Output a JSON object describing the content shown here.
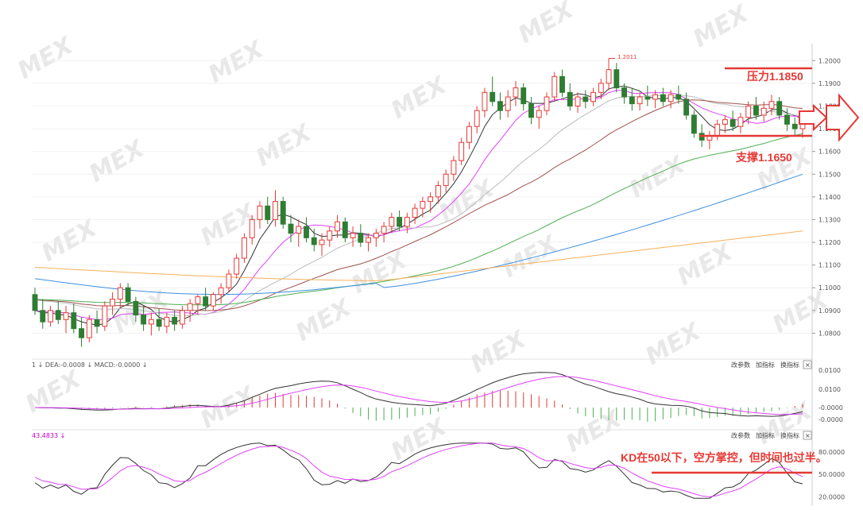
{
  "chart_data": [
    {
      "type": "candlestick",
      "panel": "price",
      "y_ticks": [
        "1.2000",
        "1.1900",
        "1.1800",
        "1.1700",
        "1.1600",
        "1.1500",
        "1.1400",
        "1.1300",
        "1.1200",
        "1.1100",
        "1.1000",
        "1.0900",
        "1.0800"
      ],
      "ylim": [
        1.07,
        1.205
      ],
      "peak_label": "1.2011",
      "resistance": {
        "label": "压力1.1850",
        "value": 1.185
      },
      "support": {
        "label": "支撑1.1650",
        "value": 1.165
      },
      "candles": [
        [
          1.097,
          1.1,
          1.088,
          1.09
        ],
        [
          1.09,
          1.095,
          1.082,
          1.085
        ],
        [
          1.085,
          1.092,
          1.083,
          1.09
        ],
        [
          1.09,
          1.094,
          1.084,
          1.086
        ],
        [
          1.086,
          1.092,
          1.08,
          1.089
        ],
        [
          1.089,
          1.093,
          1.08,
          1.082
        ],
        [
          1.082,
          1.087,
          1.074,
          1.078
        ],
        [
          1.078,
          1.088,
          1.076,
          1.086
        ],
        [
          1.086,
          1.09,
          1.08,
          1.083
        ],
        [
          1.083,
          1.094,
          1.081,
          1.092
        ],
        [
          1.092,
          1.098,
          1.088,
          1.095
        ],
        [
          1.095,
          1.102,
          1.091,
          1.1
        ],
        [
          1.1,
          1.102,
          1.092,
          1.094
        ],
        [
          1.094,
          1.096,
          1.085,
          1.088
        ],
        [
          1.088,
          1.092,
          1.081,
          1.084
        ],
        [
          1.084,
          1.089,
          1.079,
          1.086
        ],
        [
          1.086,
          1.091,
          1.081,
          1.083
        ],
        [
          1.083,
          1.089,
          1.08,
          1.087
        ],
        [
          1.087,
          1.09,
          1.081,
          1.084
        ],
        [
          1.084,
          1.092,
          1.082,
          1.09
        ],
        [
          1.09,
          1.095,
          1.085,
          1.093
        ],
        [
          1.093,
          1.097,
          1.088,
          1.096
        ],
        [
          1.096,
          1.1,
          1.09,
          1.092
        ],
        [
          1.092,
          1.098,
          1.09,
          1.097
        ],
        [
          1.097,
          1.102,
          1.093,
          1.1
        ],
        [
          1.1,
          1.108,
          1.098,
          1.106
        ],
        [
          1.106,
          1.115,
          1.104,
          1.113
        ],
        [
          1.113,
          1.124,
          1.111,
          1.122
        ],
        [
          1.122,
          1.132,
          1.119,
          1.13
        ],
        [
          1.13,
          1.138,
          1.126,
          1.136
        ],
        [
          1.136,
          1.14,
          1.128,
          1.13
        ],
        [
          1.13,
          1.143,
          1.127,
          1.138
        ],
        [
          1.138,
          1.14,
          1.126,
          1.128
        ],
        [
          1.128,
          1.132,
          1.12,
          1.124
        ],
        [
          1.124,
          1.13,
          1.118,
          1.127
        ],
        [
          1.127,
          1.131,
          1.12,
          1.122
        ],
        [
          1.122,
          1.126,
          1.116,
          1.119
        ],
        [
          1.119,
          1.124,
          1.114,
          1.121
        ],
        [
          1.121,
          1.127,
          1.118,
          1.125
        ],
        [
          1.125,
          1.132,
          1.122,
          1.129
        ],
        [
          1.129,
          1.131,
          1.12,
          1.122
        ],
        [
          1.122,
          1.127,
          1.118,
          1.124
        ],
        [
          1.124,
          1.128,
          1.118,
          1.12
        ],
        [
          1.12,
          1.124,
          1.116,
          1.122
        ],
        [
          1.122,
          1.126,
          1.118,
          1.124
        ],
        [
          1.124,
          1.129,
          1.12,
          1.127
        ],
        [
          1.127,
          1.133,
          1.124,
          1.131
        ],
        [
          1.131,
          1.134,
          1.125,
          1.127
        ],
        [
          1.127,
          1.133,
          1.124,
          1.131
        ],
        [
          1.131,
          1.137,
          1.128,
          1.135
        ],
        [
          1.135,
          1.14,
          1.131,
          1.138
        ],
        [
          1.138,
          1.142,
          1.133,
          1.14
        ],
        [
          1.14,
          1.147,
          1.137,
          1.145
        ],
        [
          1.145,
          1.152,
          1.142,
          1.15
        ],
        [
          1.15,
          1.158,
          1.147,
          1.156
        ],
        [
          1.156,
          1.166,
          1.154,
          1.164
        ],
        [
          1.164,
          1.173,
          1.161,
          1.171
        ],
        [
          1.171,
          1.18,
          1.168,
          1.178
        ],
        [
          1.178,
          1.188,
          1.175,
          1.186
        ],
        [
          1.186,
          1.193,
          1.18,
          1.182
        ],
        [
          1.182,
          1.186,
          1.174,
          1.178
        ],
        [
          1.178,
          1.187,
          1.175,
          1.184
        ],
        [
          1.184,
          1.191,
          1.18,
          1.188
        ],
        [
          1.188,
          1.19,
          1.178,
          1.181
        ],
        [
          1.181,
          1.184,
          1.172,
          1.175
        ],
        [
          1.175,
          1.18,
          1.17,
          1.178
        ],
        [
          1.178,
          1.186,
          1.176,
          1.184
        ],
        [
          1.184,
          1.195,
          1.182,
          1.193
        ],
        [
          1.193,
          1.196,
          1.184,
          1.186
        ],
        [
          1.186,
          1.19,
          1.178,
          1.18
        ],
        [
          1.18,
          1.186,
          1.177,
          1.184
        ],
        [
          1.184,
          1.187,
          1.179,
          1.182
        ],
        [
          1.182,
          1.188,
          1.18,
          1.186
        ],
        [
          1.186,
          1.192,
          1.183,
          1.19
        ],
        [
          1.19,
          1.201,
          1.187,
          1.196
        ],
        [
          1.196,
          1.199,
          1.186,
          1.188
        ],
        [
          1.188,
          1.19,
          1.181,
          1.184
        ],
        [
          1.184,
          1.188,
          1.178,
          1.181
        ],
        [
          1.181,
          1.186,
          1.178,
          1.184
        ],
        [
          1.184,
          1.189,
          1.18,
          1.183
        ],
        [
          1.183,
          1.187,
          1.179,
          1.185
        ],
        [
          1.185,
          1.188,
          1.18,
          1.182
        ],
        [
          1.182,
          1.187,
          1.179,
          1.185
        ],
        [
          1.185,
          1.189,
          1.181,
          1.183
        ],
        [
          1.183,
          1.186,
          1.174,
          1.176
        ],
        [
          1.176,
          1.178,
          1.166,
          1.168
        ],
        [
          1.168,
          1.172,
          1.162,
          1.165
        ],
        [
          1.165,
          1.169,
          1.161,
          1.167
        ],
        [
          1.167,
          1.174,
          1.165,
          1.172
        ],
        [
          1.172,
          1.176,
          1.168,
          1.174
        ],
        [
          1.174,
          1.178,
          1.169,
          1.171
        ],
        [
          1.171,
          1.177,
          1.168,
          1.175
        ],
        [
          1.175,
          1.182,
          1.172,
          1.18
        ],
        [
          1.18,
          1.184,
          1.174,
          1.176
        ],
        [
          1.176,
          1.182,
          1.173,
          1.179
        ],
        [
          1.179,
          1.185,
          1.176,
          1.182
        ],
        [
          1.182,
          1.184,
          1.174,
          1.176
        ],
        [
          1.176,
          1.179,
          1.169,
          1.172
        ],
        [
          1.172,
          1.175,
          1.167,
          1.17
        ],
        [
          1.17,
          1.174,
          1.166,
          1.172
        ]
      ]
    },
    {
      "type": "line",
      "panel": "macd",
      "header": "1 ↓ DEA:-0.0008 ↓ MACD:-0.0000 ↓",
      "y_ticks": [
        "0.0100",
        "0.0100",
        "-0.0000",
        "-0.0000"
      ],
      "toolbar": [
        "改参数",
        "加指标",
        "换指标",
        "×"
      ]
    },
    {
      "type": "line",
      "panel": "kd",
      "header": "43.4833 ↓",
      "y_ticks": [
        "80.0000",
        "50.0000",
        "20.0000"
      ],
      "toolbar": [
        "改参数",
        "加指标",
        "换指标",
        "×"
      ],
      "annotation": "KD在50以下，空方掌控，但时间也过半。",
      "level": 50
    }
  ],
  "watermark": "MEX"
}
